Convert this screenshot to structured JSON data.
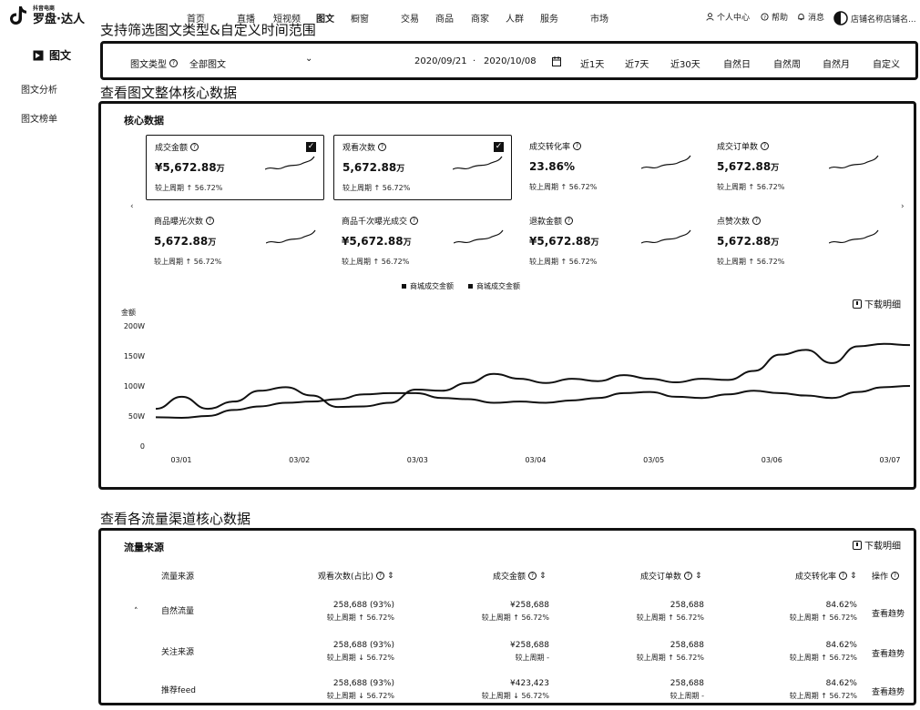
{
  "brand": {
    "sub": "抖音电商",
    "name": "罗盘·达人"
  },
  "nav": {
    "items": [
      "首页",
      "直播",
      "短视频",
      "图文",
      "橱窗",
      "交易",
      "商品",
      "商家",
      "人群",
      "服务",
      "市场"
    ],
    "user_center": "个人中心",
    "help": "帮助",
    "messages": "消息",
    "shop_name": "店铺名称店铺名..."
  },
  "sidebar": {
    "title": "图文",
    "items": [
      "图文分析",
      "图文榜单"
    ]
  },
  "captions": {
    "filter": "支持筛选图文类型&自定义时间范围",
    "core": "查看图文整体核心数据",
    "traffic": "查看各流量渠道核心数据"
  },
  "filter": {
    "type_label": "图文类型",
    "type_value": "全部图文",
    "date_start": "2020/09/21",
    "date_sep": "·",
    "date_end": "2020/10/08",
    "quick_ranges": [
      "近1天",
      "近7天",
      "近30天",
      "自然日",
      "自然周",
      "自然月",
      "自定义"
    ]
  },
  "core": {
    "title": "核心数据",
    "metrics": [
      {
        "label": "成交金额",
        "value": "¥5,672.88",
        "unit": "万",
        "compare": "较上周期 ↑ 56.72%",
        "selected": true
      },
      {
        "label": "观看次数",
        "value": "5,672.88",
        "unit": "万",
        "compare": "较上周期 ↑ 56.72%",
        "selected": true
      },
      {
        "label": "成交转化率",
        "value": "23.86%",
        "unit": "",
        "compare": "较上周期 ↑ 56.72%",
        "selected": false
      },
      {
        "label": "成交订单数",
        "value": "5,672.88",
        "unit": "万",
        "compare": "较上周期 ↑ 56.72%",
        "selected": false
      },
      {
        "label": "商品曝光次数",
        "value": "5,672.88",
        "unit": "万",
        "compare": "较上周期 ↑ 56.72%",
        "selected": false
      },
      {
        "label": "商品千次曝光成交",
        "value": "¥5,672.88",
        "unit": "万",
        "compare": "较上周期 ↑ 56.72%",
        "selected": false
      },
      {
        "label": "退款金额",
        "value": "¥5,672.88",
        "unit": "万",
        "compare": "较上周期 ↑ 56.72%",
        "selected": false
      },
      {
        "label": "点赞次数",
        "value": "5,672.88",
        "unit": "万",
        "compare": "较上周期 ↑ 56.72%",
        "selected": false
      }
    ],
    "download": "下载明细"
  },
  "chart_data": {
    "type": "line",
    "ylabel": "金额",
    "yticks": [
      "0",
      "50W",
      "100W",
      "150W",
      "200W"
    ],
    "ylim": [
      0,
      200
    ],
    "xticks": [
      "03/01",
      "03/02",
      "03/03",
      "03/04",
      "03/05",
      "03/06",
      "03/07"
    ],
    "legend_placement": "top-center",
    "series": [
      {
        "name": "商城成交金额",
        "values": [
          62,
          82,
          62,
          74,
          92,
          98,
          84,
          65,
          66,
          72,
          94,
          92,
          105,
          120,
          112,
          105,
          112,
          108,
          118,
          112,
          106,
          112,
          110,
          125,
          152,
          160,
          138,
          166,
          170,
          168
        ]
      },
      {
        "name": "商城成交金额",
        "values": [
          48,
          47,
          50,
          60,
          66,
          72,
          74,
          78,
          86,
          88,
          88,
          80,
          78,
          72,
          74,
          72,
          76,
          80,
          88,
          90,
          82,
          80,
          86,
          92,
          88,
          84,
          80,
          90,
          98,
          100
        ]
      }
    ]
  },
  "traffic": {
    "title": "流量来源",
    "download": "下载明细",
    "headers": [
      "流量来源",
      "观看次数(占比)",
      "成交金额",
      "成交订单数",
      "成交转化率",
      "操作"
    ],
    "rows": [
      {
        "source": "自然流量",
        "views": "258,688 (93%)",
        "views_cmp": "较上周期 ↑ 56.72%",
        "gmv": "¥258,688",
        "gmv_cmp": "较上周期 ↑ 56.72%",
        "orders": "258,688",
        "orders_cmp": "较上周期 ↑ 56.72%",
        "cvr": "84.62%",
        "cvr_cmp": "较上周期 ↑ 56.72%",
        "action": "查看趋势"
      },
      {
        "source": "关注来源",
        "views": "258,688 (93%)",
        "views_cmp": "较上周期 ↓ 56.72%",
        "gmv": "¥258,688",
        "gmv_cmp": "较上周期 -",
        "orders": "258,688",
        "orders_cmp": "较上周期 ↑ 56.72%",
        "cvr": "84.62%",
        "cvr_cmp": "较上周期 ↑ 56.72%",
        "action": "查看趋势"
      },
      {
        "source": "推荐feed",
        "views": "258,688 (93%)",
        "views_cmp": "较上周期 ↓ 56.72%",
        "gmv": "¥423,423",
        "gmv_cmp": "较上周期 ↓ 56.72%",
        "orders": "258,688",
        "orders_cmp": "较上周期 -",
        "cvr": "84.62%",
        "cvr_cmp": "较上周期 ↑ 56.72%",
        "action": "查看趋势"
      }
    ]
  }
}
